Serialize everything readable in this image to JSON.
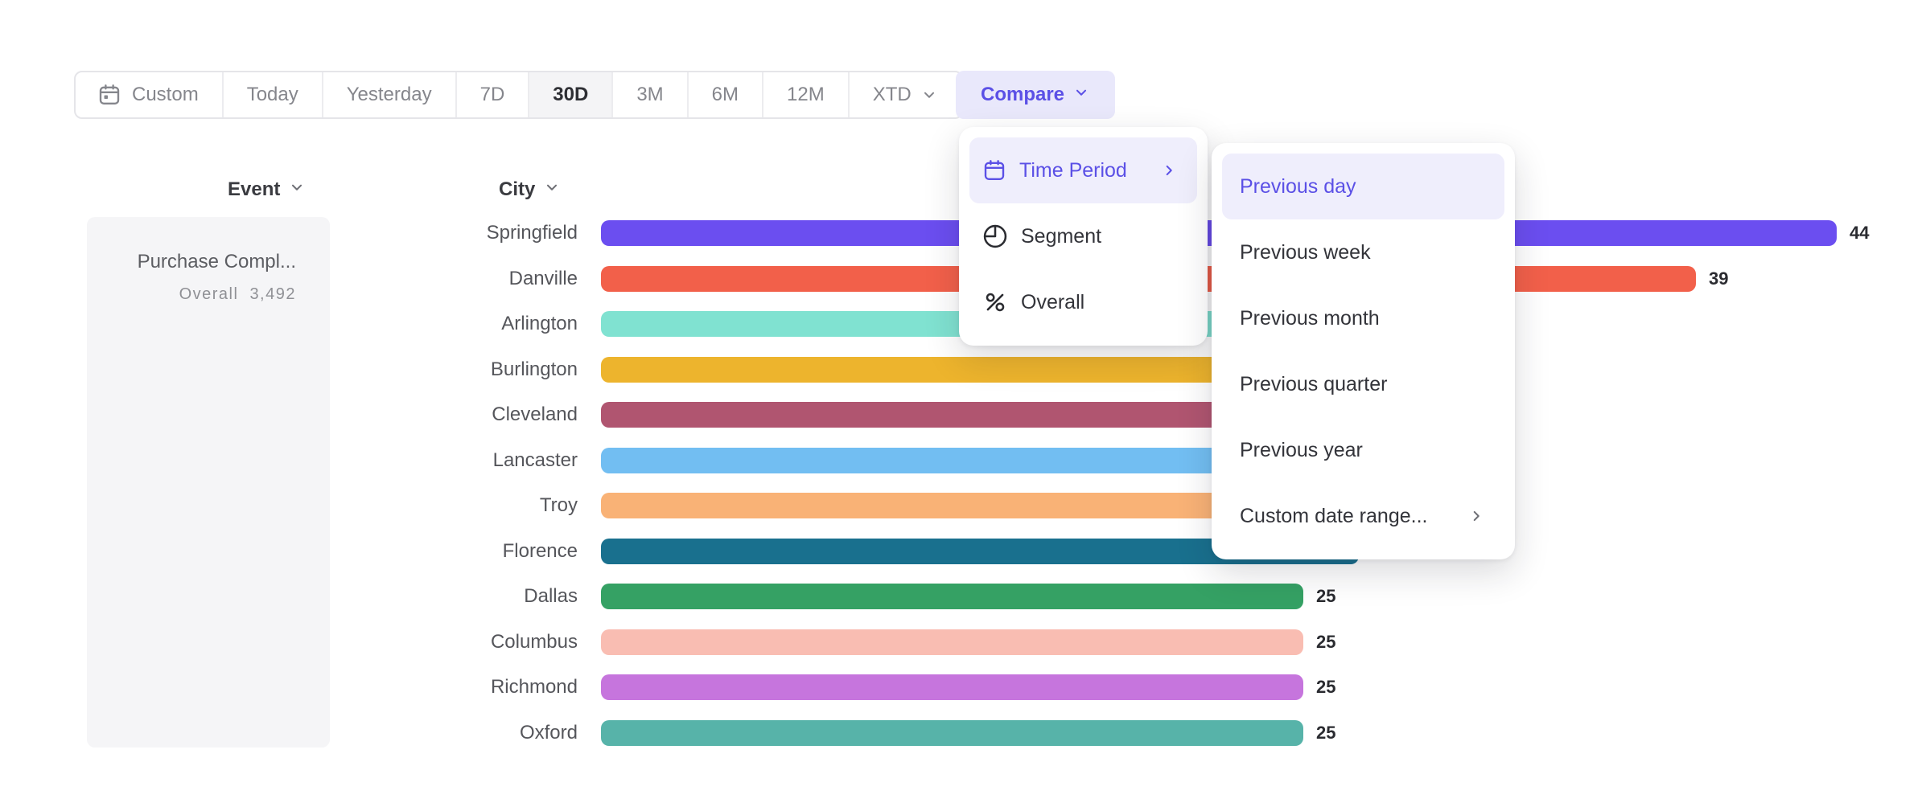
{
  "toolbar": {
    "items": [
      {
        "label": "Custom",
        "icon": "calendar-icon"
      },
      {
        "label": "Today"
      },
      {
        "label": "Yesterday"
      },
      {
        "label": "7D"
      },
      {
        "label": "30D"
      },
      {
        "label": "3M"
      },
      {
        "label": "6M"
      },
      {
        "label": "12M"
      },
      {
        "label": "XTD",
        "chevron": true
      }
    ],
    "selected": "30D",
    "compare_label": "Compare"
  },
  "compare_menu": {
    "items": [
      {
        "label": "Time Period",
        "icon": "calendar-icon",
        "selected": true,
        "has_submenu": true
      },
      {
        "label": "Segment",
        "icon": "segment-icon",
        "selected": false,
        "has_submenu": false
      },
      {
        "label": "Overall",
        "icon": "percent-icon",
        "selected": false,
        "has_submenu": false
      }
    ]
  },
  "time_period_submenu": {
    "items": [
      {
        "label": "Previous day",
        "selected": true,
        "has_submenu": false
      },
      {
        "label": "Previous week",
        "selected": false,
        "has_submenu": false
      },
      {
        "label": "Previous month",
        "selected": false,
        "has_submenu": false
      },
      {
        "label": "Previous quarter",
        "selected": false,
        "has_submenu": false
      },
      {
        "label": "Previous year",
        "selected": false,
        "has_submenu": false
      },
      {
        "label": "Custom date range...",
        "selected": false,
        "has_submenu": true
      }
    ]
  },
  "event_panel": {
    "header": "Event",
    "event_name": "Purchase Compl...",
    "overall_label": "Overall",
    "overall_value": "3,492"
  },
  "chart_data": {
    "type": "bar",
    "orientation": "horizontal",
    "group_label": "City",
    "value_axis_hidden": true,
    "rows": [
      {
        "city": "Springfield",
        "value": 44,
        "value_label": "44",
        "color": "#6B4EF0",
        "value_hidden": false
      },
      {
        "city": "Danville",
        "value": 39,
        "value_label": "39",
        "color": "#F2604A",
        "value_hidden": false
      },
      {
        "city": "Arlington",
        "value": null,
        "est_units": 32,
        "value_label": "",
        "color": "#80E2D1",
        "value_hidden": true
      },
      {
        "city": "Burlington",
        "value": null,
        "est_units": 31,
        "value_label": "",
        "color": "#EDB42D",
        "value_hidden": true
      },
      {
        "city": "Cleveland",
        "value": null,
        "est_units": 30,
        "value_label": "",
        "color": "#B05570",
        "value_hidden": true
      },
      {
        "city": "Lancaster",
        "value": null,
        "est_units": 29,
        "value_label": "",
        "color": "#72BEF2",
        "value_hidden": true
      },
      {
        "city": "Troy",
        "value": null,
        "est_units": 28,
        "value_label": "",
        "color": "#F9B276",
        "value_hidden": true
      },
      {
        "city": "Florence",
        "value": null,
        "est_units": 27,
        "value_label": "",
        "color": "#19708E",
        "value_hidden": true
      },
      {
        "city": "Dallas",
        "value": 25,
        "value_label": "25",
        "color": "#35A164",
        "value_hidden": false
      },
      {
        "city": "Columbus",
        "value": 25,
        "value_label": "25",
        "color": "#F9BDB2",
        "value_hidden": false
      },
      {
        "city": "Richmond",
        "value": 25,
        "value_label": "25",
        "color": "#C675DD",
        "value_hidden": false
      },
      {
        "city": "Oxford",
        "value": 25,
        "value_label": "25",
        "color": "#57B3A9",
        "value_hidden": false
      }
    ]
  },
  "colors": {
    "accent": "#5B50E6",
    "accent_bg": "#E9E8FB",
    "menu_highlight_bg": "#EFEEFC",
    "toolbar_icon": "#85868C",
    "menu_icon": "#2B2C31"
  }
}
